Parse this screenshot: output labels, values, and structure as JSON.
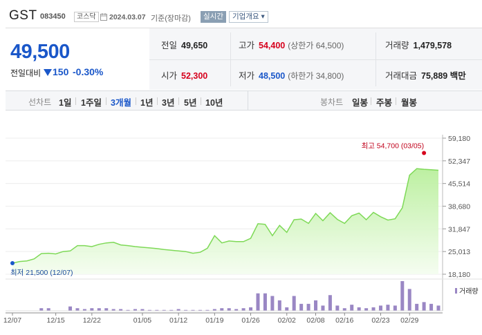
{
  "stock": {
    "name": "GST",
    "code": "083450",
    "market": "코스닥",
    "date": "2024.03.07",
    "basis": "기준(장마감)",
    "realtime_label": "실시간",
    "company_info_label": "기업개요 ▾"
  },
  "price": {
    "current": "49,500",
    "change_label": "전일대비",
    "change_value": "150",
    "change_rate": "-0.30%"
  },
  "info": {
    "prev_label": "전일",
    "prev_value": "49,650",
    "high_label": "고가",
    "high_value": "54,400",
    "upper_limit": "(상한가 64,500)",
    "volume_label": "거래량",
    "volume_value": "1,479,578",
    "open_label": "시가",
    "open_value": "52,300",
    "low_label": "저가",
    "low_value": "48,500",
    "lower_limit": "(하한가 34,800)",
    "amount_label": "거래대금",
    "amount_value": "75,889 백만"
  },
  "tabs": {
    "line_label": "선차트",
    "line_periods": [
      "1일",
      "1주일",
      "3개월",
      "1년",
      "3년",
      "5년",
      "10년"
    ],
    "active_period": "3개월",
    "candle_label": "봉차트",
    "candle_periods": [
      "일봉",
      "주봉",
      "월봉"
    ]
  },
  "colors": {
    "up": "#d6001c",
    "down": "#1a57c9",
    "line": "#7ed957",
    "volume_bar": "#9a87c4"
  },
  "chart_data": {
    "type": "area",
    "y_ticks": [
      "59,180",
      "52,347",
      "45,514",
      "38,680",
      "31,847",
      "25,013",
      "18,180"
    ],
    "ylim": [
      18180,
      59180
    ],
    "x_tick_labels": [
      "12/07",
      "12/15",
      "12/22",
      "01/05",
      "01/12",
      "01/19",
      "01/26",
      "02/02",
      "02/08",
      "02/16",
      "02/23",
      "02/29"
    ],
    "x_tick_index": [
      0,
      6,
      11,
      18,
      23,
      28,
      33,
      38,
      42,
      46,
      51,
      55
    ],
    "dates": [
      "12/07",
      "12/08",
      "12/11",
      "12/12",
      "12/13",
      "12/14",
      "12/15",
      "12/18",
      "12/19",
      "12/20",
      "12/21",
      "12/22",
      "12/26",
      "12/27",
      "12/28",
      "01/02",
      "01/03",
      "01/04",
      "01/05",
      "01/08",
      "01/09",
      "01/10",
      "01/11",
      "01/12",
      "01/15",
      "01/16",
      "01/17",
      "01/18",
      "01/19",
      "01/22",
      "01/23",
      "01/24",
      "01/25",
      "01/26",
      "01/29",
      "01/30",
      "01/31",
      "02/01",
      "02/02",
      "02/05",
      "02/06",
      "02/07",
      "02/08",
      "02/13",
      "02/14",
      "02/15",
      "02/16",
      "02/19",
      "02/20",
      "02/21",
      "02/22",
      "02/23",
      "02/26",
      "02/27",
      "02/28",
      "02/29",
      "03/04",
      "03/05",
      "03/06",
      "03/07"
    ],
    "close": [
      21500,
      22000,
      22200,
      22800,
      24400,
      24500,
      24300,
      25000,
      25200,
      26800,
      26800,
      26500,
      27200,
      27600,
      27800,
      27000,
      26800,
      26500,
      26300,
      26100,
      25900,
      25600,
      25400,
      25200,
      25000,
      24500,
      24800,
      26000,
      29800,
      27600,
      28200,
      28000,
      28000,
      29000,
      33400,
      33200,
      29800,
      32900,
      30800,
      34600,
      34800,
      33500,
      36500,
      34300,
      36700,
      34700,
      33500,
      35800,
      36600,
      34600,
      36800,
      35500,
      34500,
      34900,
      38200,
      48000,
      50000,
      49800,
      49650,
      49500
    ],
    "volume": [
      0,
      0,
      0,
      0,
      3,
      3,
      0,
      0,
      5,
      3,
      2,
      3,
      3,
      3,
      2,
      2,
      1,
      2,
      2,
      1,
      1,
      1,
      1,
      2,
      1,
      1,
      1,
      1,
      2,
      3,
      3,
      2,
      3,
      4,
      20,
      20,
      17,
      12,
      4,
      17,
      8,
      8,
      12,
      6,
      18,
      6,
      3,
      7,
      4,
      3,
      4,
      6,
      7,
      6,
      34,
      25,
      8,
      10,
      8,
      6
    ],
    "high": {
      "label": "최고",
      "value": "54,700",
      "date": "(03/05)"
    },
    "low": {
      "label": "최저",
      "value": "21,500",
      "date": "(12/07)"
    },
    "volume_legend": "거래량"
  }
}
